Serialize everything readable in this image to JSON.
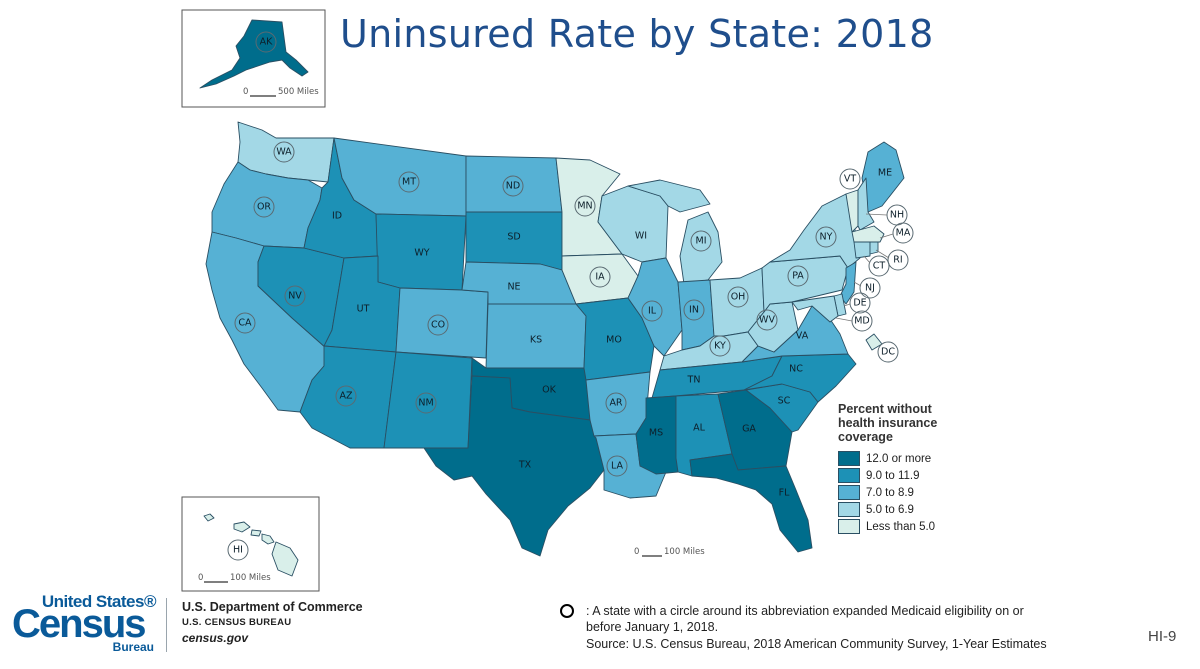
{
  "title": "Uninsured Rate by State: 2018",
  "legend": {
    "title_line1": "Percent without",
    "title_line2": "health insurance",
    "title_line3": "coverage",
    "items": [
      {
        "label": "12.0 or more",
        "color": "#006d8c"
      },
      {
        "label": "9.0 to 11.9",
        "color": "#1d91b6"
      },
      {
        "label": "7.0 to 8.9",
        "color": "#56b1d4"
      },
      {
        "label": "5.0 to 6.9",
        "color": "#a3d8e6"
      },
      {
        "label": "Less than 5.0",
        "color": "#d9efea"
      }
    ]
  },
  "class_colors": [
    "#006d8c",
    "#1d91b6",
    "#56b1d4",
    "#a3d8e6",
    "#d9efea"
  ],
  "states": {
    "WA": {
      "cls": 3,
      "expanded": true
    },
    "OR": {
      "cls": 2,
      "expanded": true
    },
    "CA": {
      "cls": 2,
      "expanded": true
    },
    "NV": {
      "cls": 1,
      "expanded": true
    },
    "ID": {
      "cls": 1,
      "expanded": false
    },
    "MT": {
      "cls": 2,
      "expanded": true
    },
    "WY": {
      "cls": 1,
      "expanded": false
    },
    "UT": {
      "cls": 1,
      "expanded": false
    },
    "AZ": {
      "cls": 1,
      "expanded": true
    },
    "CO": {
      "cls": 2,
      "expanded": true
    },
    "NM": {
      "cls": 1,
      "expanded": true
    },
    "ND": {
      "cls": 2,
      "expanded": true
    },
    "SD": {
      "cls": 1,
      "expanded": false
    },
    "NE": {
      "cls": 2,
      "expanded": false
    },
    "KS": {
      "cls": 2,
      "expanded": false
    },
    "OK": {
      "cls": 0,
      "expanded": false
    },
    "TX": {
      "cls": 0,
      "expanded": false
    },
    "MN": {
      "cls": 4,
      "expanded": true
    },
    "IA": {
      "cls": 4,
      "expanded": true
    },
    "MO": {
      "cls": 1,
      "expanded": false
    },
    "AR": {
      "cls": 2,
      "expanded": true
    },
    "LA": {
      "cls": 2,
      "expanded": true
    },
    "WI": {
      "cls": 3,
      "expanded": false
    },
    "IL": {
      "cls": 2,
      "expanded": true
    },
    "MI": {
      "cls": 3,
      "expanded": true
    },
    "IN": {
      "cls": 2,
      "expanded": true
    },
    "OH": {
      "cls": 3,
      "expanded": true
    },
    "KY": {
      "cls": 3,
      "expanded": true
    },
    "TN": {
      "cls": 1,
      "expanded": false
    },
    "MS": {
      "cls": 0,
      "expanded": false
    },
    "AL": {
      "cls": 1,
      "expanded": false
    },
    "GA": {
      "cls": 0,
      "expanded": false
    },
    "FL": {
      "cls": 0,
      "expanded": false
    },
    "SC": {
      "cls": 1,
      "expanded": false
    },
    "NC": {
      "cls": 1,
      "expanded": false
    },
    "VA": {
      "cls": 2,
      "expanded": false
    },
    "WV": {
      "cls": 3,
      "expanded": true
    },
    "PA": {
      "cls": 3,
      "expanded": true
    },
    "NY": {
      "cls": 3,
      "expanded": true
    },
    "ME": {
      "cls": 2,
      "expanded": false
    },
    "VT": {
      "cls": 4,
      "expanded": true
    },
    "NH": {
      "cls": 3,
      "expanded": true
    },
    "MA": {
      "cls": 4,
      "expanded": true
    },
    "RI": {
      "cls": 3,
      "expanded": true
    },
    "CT": {
      "cls": 3,
      "expanded": true
    },
    "NJ": {
      "cls": 2,
      "expanded": true
    },
    "DE": {
      "cls": 3,
      "expanded": true
    },
    "MD": {
      "cls": 3,
      "expanded": true
    },
    "DC": {
      "cls": 4,
      "expanded": true
    },
    "AK": {
      "cls": 0,
      "expanded": true
    },
    "HI": {
      "cls": 4,
      "expanded": true
    }
  },
  "scale_ak": {
    "zero": "0",
    "label": "500 Miles"
  },
  "scale_hi": {
    "zero": "0",
    "label": "100 Miles"
  },
  "scale_main": {
    "zero": "0",
    "label": "100 Miles"
  },
  "logo": {
    "line1": "United States®",
    "line2": "Census",
    "line3": "Bureau"
  },
  "department": {
    "name": "U.S. Department of Commerce",
    "bureau": "U.S. CENSUS BUREAU",
    "url": "census.gov"
  },
  "note": ": A state with a circle around its abbreviation expanded Medicaid eligibility on or before January 1, 2018.",
  "source": "Source: U.S. Census Bureau, 2018 American Community Survey, 1-Year Estimates",
  "page_number": "HI-9"
}
